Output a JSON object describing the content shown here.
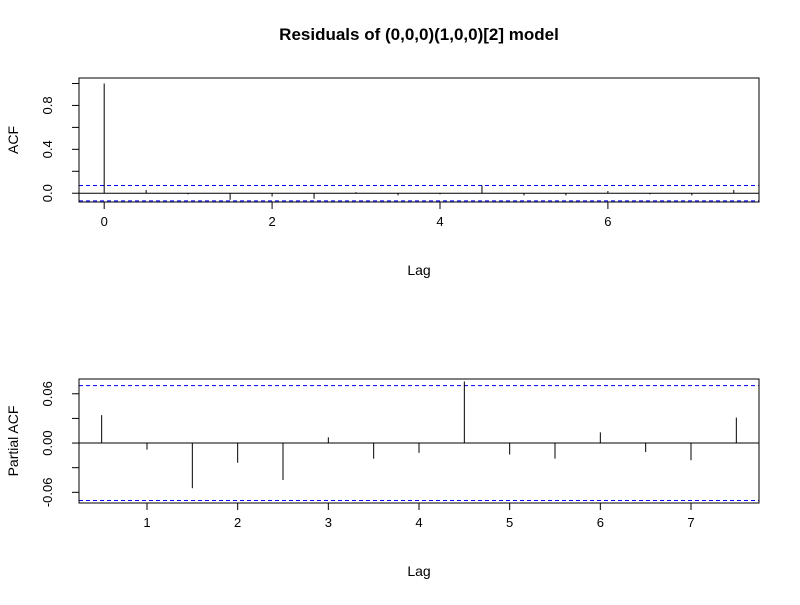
{
  "title": "Residuals of (0,0,0)(1,0,0)[2] model",
  "colors": {
    "ci_line": "#0000ff",
    "spike": "#000000",
    "zero_line": "#000000"
  },
  "chart_data": [
    {
      "type": "bar",
      "subtype": "acf",
      "xlabel": "Lag",
      "ylabel": "ACF",
      "xlim": [
        -0.3,
        7.8
      ],
      "ylim": [
        -0.08,
        1.05
      ],
      "xticks": [
        0,
        2,
        4,
        6
      ],
      "xtick_labels": [
        "0",
        "2",
        "4",
        "6"
      ],
      "yticks": [
        0.0,
        0.4,
        0.8
      ],
      "ytick_labels": [
        "0.0",
        "0.4",
        "0.8"
      ],
      "yticks_minor": [
        0.2,
        0.6,
        1.0
      ],
      "ci": 0.07,
      "x": [
        0,
        0.5,
        1,
        1.5,
        2,
        2.5,
        3,
        3.5,
        4,
        4.5,
        5,
        5.5,
        6,
        6.5,
        7,
        7.5
      ],
      "values": [
        1.0,
        0.03,
        -0.01,
        -0.06,
        -0.03,
        -0.05,
        0.01,
        -0.02,
        -0.01,
        0.07,
        -0.02,
        -0.02,
        0.02,
        -0.01,
        -0.02,
        0.03
      ]
    },
    {
      "type": "bar",
      "subtype": "pacf",
      "xlabel": "Lag",
      "ylabel": "Partial ACF",
      "xlim": [
        0.25,
        7.75
      ],
      "ylim": [
        -0.073,
        0.078
      ],
      "xticks": [
        1,
        2,
        3,
        4,
        5,
        6,
        7
      ],
      "xtick_labels": [
        "1",
        "2",
        "3",
        "4",
        "5",
        "6",
        "7"
      ],
      "yticks": [
        -0.06,
        0.0,
        0.06
      ],
      "ytick_labels": [
        "-0.06",
        "0.00",
        "0.06"
      ],
      "yticks_minor": [
        -0.03,
        0.03
      ],
      "yticks_minor_labels": [
        "-0.03",
        "0.03"
      ],
      "ci": 0.07,
      "x": [
        0.5,
        1,
        1.5,
        2,
        2.5,
        3,
        3.5,
        4,
        4.5,
        5,
        5.5,
        6,
        6.5,
        7,
        7.5
      ],
      "values": [
        0.034,
        -0.008,
        -0.055,
        -0.024,
        -0.045,
        0.007,
        -0.019,
        -0.012,
        0.075,
        -0.014,
        -0.019,
        0.013,
        -0.011,
        -0.021,
        0.031
      ]
    }
  ]
}
